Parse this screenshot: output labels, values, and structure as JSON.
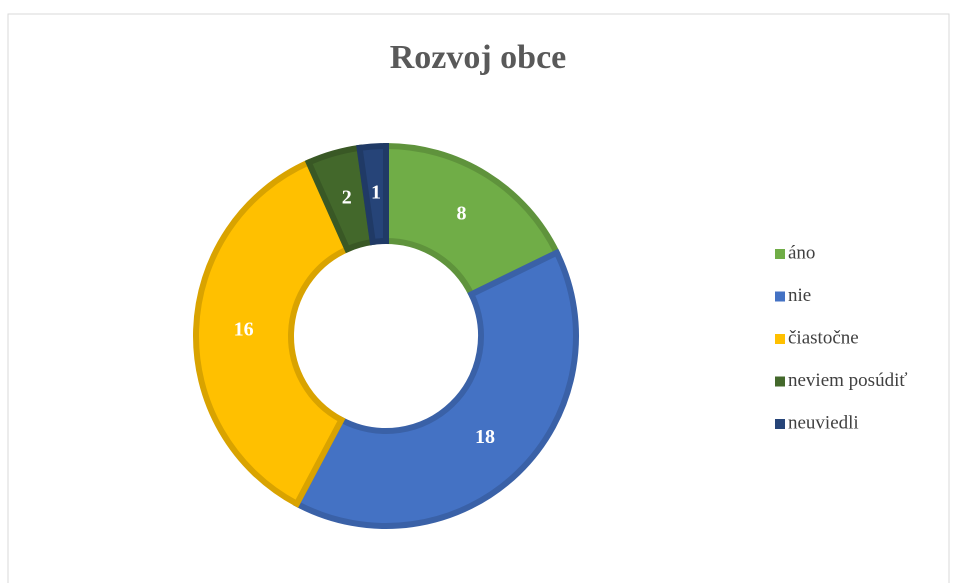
{
  "chart_data": {
    "type": "donut",
    "title": "Rozvoj obce",
    "categories": [
      "áno",
      "nie",
      "čiastočne",
      "neviem posúdiť",
      "neuviedli"
    ],
    "values": [
      8,
      18,
      16,
      2,
      1
    ],
    "colors": [
      "#70ad47",
      "#4472c4",
      "#ffc000",
      "#43682b",
      "#264478"
    ],
    "legend": "right"
  }
}
